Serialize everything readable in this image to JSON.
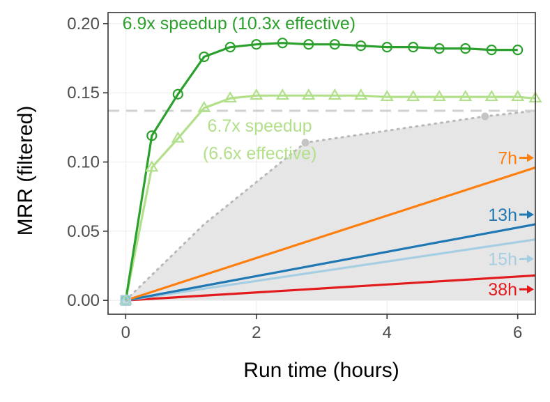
{
  "chart_data": {
    "type": "line",
    "xlabel": "Run time (hours)",
    "ylabel": "MRR (filtered)",
    "xlim": [
      -0.27,
      6.27
    ],
    "ylim": [
      -0.01,
      0.208
    ],
    "x_ticks": [
      "0",
      "2",
      "4",
      "6"
    ],
    "x_tick_values": [
      0,
      2,
      4,
      6
    ],
    "y_ticks": [
      "0.00",
      "0.05",
      "0.10",
      "0.15",
      "0.20"
    ],
    "y_tick_values": [
      0,
      0.05,
      0.1,
      0.15,
      0.2
    ],
    "grid": true,
    "reference_line": {
      "y": 0.137,
      "style": "dashed",
      "color": "#d0d0d0"
    },
    "shaded_region": {
      "color": "#e6e6e6",
      "boundary": [
        [
          0,
          0
        ],
        [
          1.2,
          0.055
        ],
        [
          2.75,
          0.114
        ],
        [
          5.5,
          0.133
        ],
        [
          6.27,
          0.137
        ]
      ],
      "boundary_points": [
        [
          2.75,
          0.114
        ],
        [
          5.5,
          0.133
        ]
      ]
    },
    "series": [
      {
        "color": "#2ca02c",
        "marker": "circle",
        "x": [
          0,
          0.4,
          0.8,
          1.2,
          1.6,
          2.0,
          2.4,
          2.8,
          3.2,
          3.6,
          4.0,
          4.4,
          4.8,
          5.2,
          5.6,
          6.0
        ],
        "y": [
          0,
          0.119,
          0.149,
          0.176,
          0.183,
          0.185,
          0.186,
          0.185,
          0.185,
          0.184,
          0.183,
          0.183,
          0.182,
          0.182,
          0.181,
          0.181
        ]
      },
      {
        "color": "#b2df8a",
        "marker": "triangle",
        "x": [
          0,
          0.4,
          0.8,
          1.2,
          1.6,
          2.0,
          2.4,
          2.8,
          3.2,
          3.6,
          4.0,
          4.4,
          4.8,
          5.2,
          5.6,
          6.0,
          6.27
        ],
        "y": [
          0,
          0.096,
          0.117,
          0.139,
          0.146,
          0.148,
          0.148,
          0.148,
          0.148,
          0.148,
          0.147,
          0.147,
          0.147,
          0.147,
          0.147,
          0.147,
          0.146
        ]
      },
      {
        "color": "#ff7f0e",
        "marker": "none",
        "x": [
          0,
          6.27
        ],
        "y": [
          0,
          0.096
        ]
      },
      {
        "color": "#1f78b4",
        "marker": "none",
        "x": [
          0,
          6.27
        ],
        "y": [
          0,
          0.055
        ]
      },
      {
        "color": "#a6cee3",
        "marker": "none",
        "x": [
          0,
          6.27
        ],
        "y": [
          0,
          0.044
        ]
      },
      {
        "color": "#e31a1c",
        "marker": "none",
        "x": [
          0,
          6.27
        ],
        "y": [
          0,
          0.018
        ]
      }
    ],
    "annotations": [
      {
        "text": "6.9x speedup (10.3x effective)",
        "x": -0.05,
        "y": 0.196,
        "anchor": "start",
        "color": "#2ca02c"
      },
      {
        "text": "6.7x speedup",
        "x": 1.25,
        "y": 0.122,
        "anchor": "start",
        "color": "#b2df8a"
      },
      {
        "text": "(6.6x effective)",
        "x": 1.18,
        "y": 0.102,
        "anchor": "start",
        "color": "#b2df8a"
      }
    ],
    "line_labels": [
      {
        "text": "7h",
        "y": 0.103,
        "color": "#ff7f0e"
      },
      {
        "text": "13h",
        "y": 0.062,
        "color": "#1f78b4"
      },
      {
        "text": "15h",
        "y": 0.03,
        "color": "#a6cee3"
      },
      {
        "text": "38h",
        "y": 0.008,
        "color": "#e31a1c"
      }
    ]
  }
}
